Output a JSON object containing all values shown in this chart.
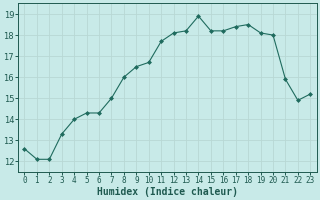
{
  "x": [
    0,
    1,
    2,
    3,
    4,
    5,
    6,
    7,
    8,
    9,
    10,
    11,
    12,
    13,
    14,
    15,
    16,
    17,
    18,
    19,
    20,
    21,
    22,
    23
  ],
  "y": [
    12.6,
    12.1,
    12.1,
    13.3,
    14.0,
    14.3,
    14.3,
    15.0,
    16.0,
    16.5,
    16.7,
    17.7,
    18.1,
    18.2,
    18.9,
    18.2,
    18.2,
    18.4,
    18.5,
    18.1,
    18.0,
    15.9,
    14.9,
    15.2
  ],
  "line_color": "#1f6b5e",
  "marker_color": "#1f6b5e",
  "bg_color": "#c8eae8",
  "grid_color": "#b8d8d4",
  "xlabel": "Humidex (Indice chaleur)",
  "xlabel_fontsize": 7,
  "tick_fontsize": 5.5,
  "ytick_fontsize": 6,
  "ylabel_ticks": [
    12,
    13,
    14,
    15,
    16,
    17,
    18,
    19
  ],
  "xlim": [
    -0.5,
    23.5
  ],
  "ylim": [
    11.5,
    19.5
  ]
}
